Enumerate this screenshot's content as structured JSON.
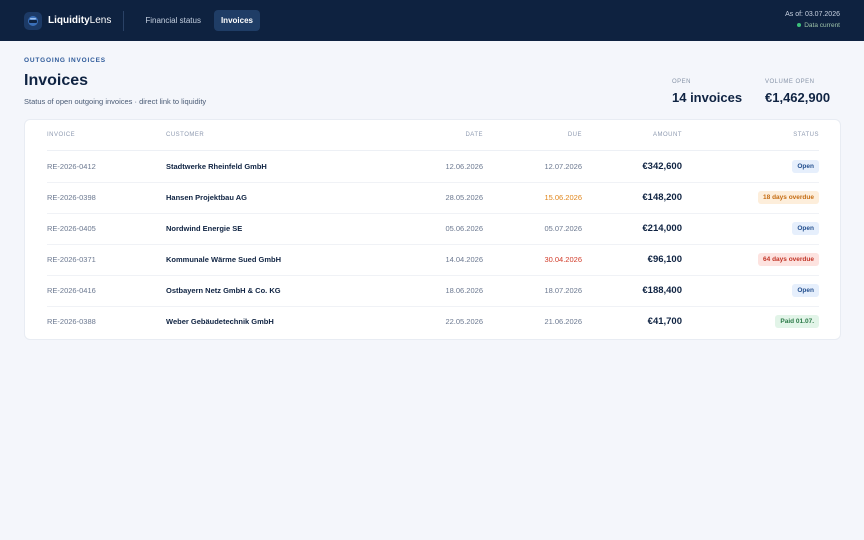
{
  "brand": {
    "name_bold": "Liquidity",
    "name_rest": "Lens",
    "logo_icon": "wallet-icon"
  },
  "nav": [
    {
      "label": "Financial status",
      "active": false
    },
    {
      "label": "Invoices",
      "active": true
    }
  ],
  "status": {
    "as_of": "As of: 03.07.2026",
    "data_state": "Data current"
  },
  "header": {
    "eyebrow": "OUTGOING INVOICES",
    "title": "Invoices",
    "subtitle": "Status of open outgoing invoices · direct link to liquidity"
  },
  "stats": {
    "open_label": "OPEN",
    "open_value": "14 invoices",
    "volume_label": "VOLUME OPEN",
    "volume_value": "€1,462,900"
  },
  "table": {
    "columns": [
      "INVOICE",
      "CUSTOMER",
      "DATE",
      "DUE",
      "AMOUNT",
      "STATUS"
    ],
    "rows": [
      {
        "invoice": "RE-2026-0412",
        "customer": "Stadtwerke Rheinfeld GmbH",
        "date": "12.06.2026",
        "due": "12.07.2026",
        "amount": "€342,600",
        "status": "Open"
      },
      {
        "invoice": "RE-2026-0398",
        "customer": "Hansen Projektbau AG",
        "date": "28.05.2026",
        "due": "15.06.2026",
        "amount": "€148,200",
        "status": "18 days overdue"
      },
      {
        "invoice": "RE-2026-0405",
        "customer": "Nordwind Energie SE",
        "date": "05.06.2026",
        "due": "05.07.2026",
        "amount": "€214,000",
        "status": "Open"
      },
      {
        "invoice": "RE-2026-0371",
        "customer": "Kommunale Wärme Sued GmbH",
        "date": "14.04.2026",
        "due": "30.04.2026",
        "amount": "€96,100",
        "status": "64 days overdue"
      },
      {
        "invoice": "RE-2026-0416",
        "customer": "Ostbayern Netz GmbH & Co. KG",
        "date": "18.06.2026",
        "due": "18.07.2026",
        "amount": "€188,400",
        "status": "Open"
      },
      {
        "invoice": "RE-2026-0388",
        "customer": "Weber Gebäudetechnik GmbH",
        "date": "22.05.2026",
        "due": "21.06.2026",
        "amount": "€41,700",
        "status": "Paid 01.07."
      }
    ]
  },
  "colors": {
    "topbar": "#0e2240",
    "accent": "#2e5a9a",
    "overdue_warn": "#e0861c",
    "overdue_danger": "#d23c2a",
    "paid": "#2c7a48"
  }
}
